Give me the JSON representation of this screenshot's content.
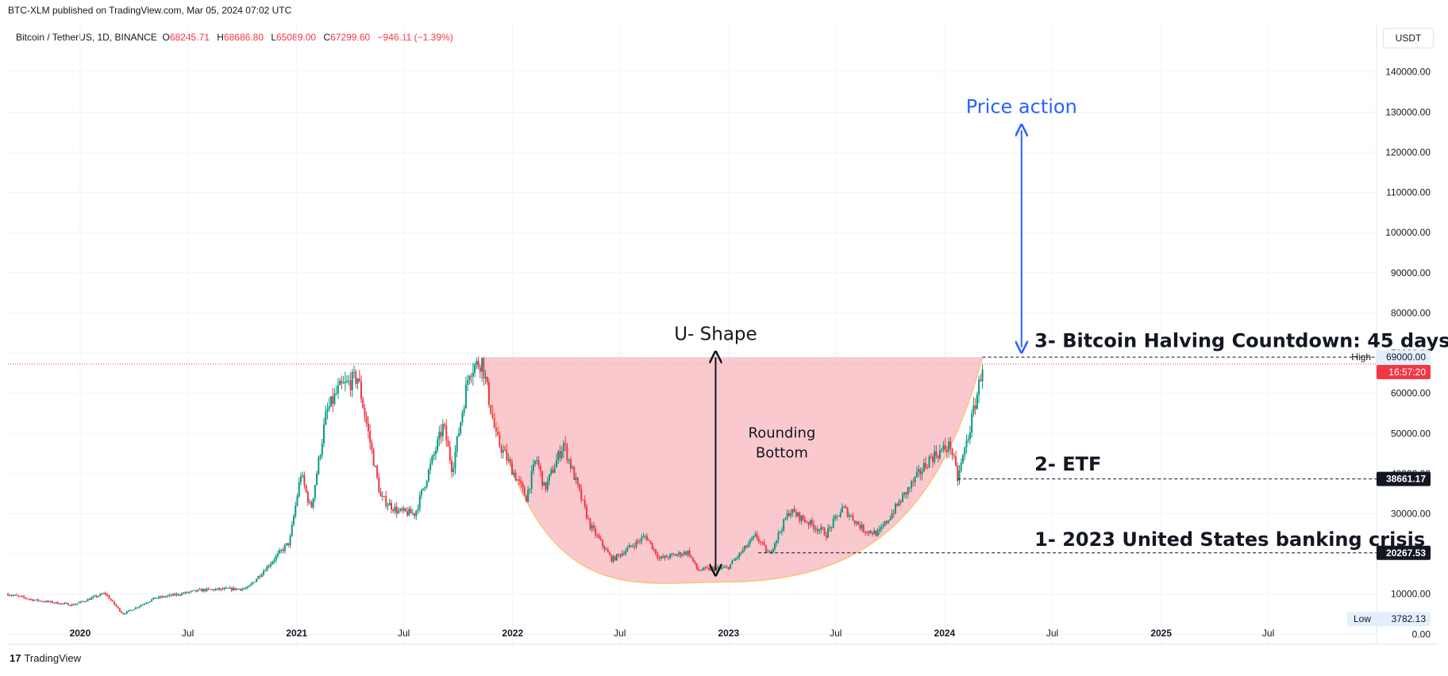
{
  "header": {
    "publisher": "BTC-XLM published on TradingView.com, Mar 05, 2024 07:02 UTC"
  },
  "symbol": {
    "name": "Bitcoin / TetherUS, 1D, BINANCE",
    "open_label": "O",
    "open": "68245.71",
    "high_label": "H",
    "high": "68686.80",
    "low_label": "L",
    "low": "65089.00",
    "close_label": "C",
    "close": "67299.60",
    "change": "−946.11 (−1.39%)"
  },
  "currency": "USDT",
  "footer": {
    "logo": "17",
    "brand": "TradingView"
  },
  "colors": {
    "up": "#089981",
    "down": "#f23645",
    "arrow_blue": "#2962ff",
    "fill_red": "#f8bfc5",
    "curve": "#f7c37a"
  },
  "chart_data": {
    "type": "candlestick",
    "y_tick_labels": [
      "140000.00",
      "130000.00",
      "120000.00",
      "110000.00",
      "100000.00",
      "90000.00",
      "80000.00",
      "70000.00",
      "60000.00",
      "50000.00",
      "40000.00",
      "30000.00",
      "20000.00",
      "10000.00",
      "0.00"
    ],
    "y_ticks": [
      140000,
      130000,
      120000,
      110000,
      100000,
      90000,
      80000,
      70000,
      60000,
      50000,
      40000,
      30000,
      20000,
      10000,
      0
    ],
    "ylim": [
      -2500,
      152000
    ],
    "xlim": [
      "2019-09-01",
      "2025-12-31"
    ],
    "x_ticks": [
      {
        "label": "2020",
        "date": "2020-01-01"
      },
      {
        "label": "Jul",
        "date": "2020-07-01"
      },
      {
        "label": "2021",
        "date": "2021-01-01"
      },
      {
        "label": "Jul",
        "date": "2021-07-01"
      },
      {
        "label": "2022",
        "date": "2022-01-01"
      },
      {
        "label": "Jul",
        "date": "2022-07-01"
      },
      {
        "label": "2023",
        "date": "2023-01-01"
      },
      {
        "label": "Jul",
        "date": "2023-07-01"
      },
      {
        "label": "2024",
        "date": "2024-01-01"
      },
      {
        "label": "Jul",
        "date": "2024-07-01"
      },
      {
        "label": "2025",
        "date": "2025-01-01"
      },
      {
        "label": "Jul",
        "date": "2025-07-01"
      }
    ],
    "price_anchors": [
      [
        "2019-09-01",
        10000
      ],
      [
        "2019-10-15",
        8500
      ],
      [
        "2019-12-20",
        7300
      ],
      [
        "2020-02-12",
        10200
      ],
      [
        "2020-03-13",
        5000
      ],
      [
        "2020-05-05",
        8900
      ],
      [
        "2020-07-25",
        11000
      ],
      [
        "2020-10-10",
        11400
      ],
      [
        "2020-12-20",
        23000
      ],
      [
        "2021-01-08",
        40000
      ],
      [
        "2021-01-25",
        31000
      ],
      [
        "2021-02-20",
        55000
      ],
      [
        "2021-03-13",
        61000
      ],
      [
        "2021-04-14",
        64000
      ],
      [
        "2021-05-23",
        34000
      ],
      [
        "2021-06-22",
        30500
      ],
      [
        "2021-07-20",
        30000
      ],
      [
        "2021-09-06",
        52000
      ],
      [
        "2021-09-21",
        41000
      ],
      [
        "2021-10-20",
        66000
      ],
      [
        "2021-11-10",
        68000
      ],
      [
        "2021-12-04",
        49000
      ],
      [
        "2022-01-24",
        34000
      ],
      [
        "2022-02-10",
        44000
      ],
      [
        "2022-02-24",
        36000
      ],
      [
        "2022-03-28",
        47500
      ],
      [
        "2022-05-12",
        27000
      ],
      [
        "2022-06-18",
        18500
      ],
      [
        "2022-08-14",
        24500
      ],
      [
        "2022-09-06",
        18800
      ],
      [
        "2022-10-25",
        20500
      ],
      [
        "2022-11-09",
        16000
      ],
      [
        "2022-12-30",
        16500
      ],
      [
        "2023-02-16",
        24500
      ],
      [
        "2023-03-10",
        19800
      ],
      [
        "2023-04-14",
        30800
      ],
      [
        "2023-06-15",
        25000
      ],
      [
        "2023-07-13",
        31500
      ],
      [
        "2023-08-17",
        26000
      ],
      [
        "2023-09-11",
        25000
      ],
      [
        "2023-10-24",
        34500
      ],
      [
        "2023-12-08",
        44000
      ],
      [
        "2024-01-11",
        47000
      ],
      [
        "2024-01-23",
        38661
      ],
      [
        "2024-02-14",
        52000
      ],
      [
        "2024-02-28",
        62000
      ],
      [
        "2024-03-05",
        67300
      ]
    ],
    "high_marker": {
      "label": "High",
      "value": "69000.00"
    },
    "low_marker": {
      "label": "Low",
      "value": "3782.13"
    },
    "current_countdown": "16:57:20",
    "level_labels": [
      {
        "text": "38661.17",
        "value": 38661.17
      },
      {
        "text": "20267.53",
        "value": 20267.53
      }
    ],
    "annotations": {
      "price_action": "Price action",
      "u_shape": "U- Shape",
      "rounding_bottom_1": "Rounding",
      "rounding_bottom_2": "Bottom",
      "halving": "3- Bitcoin Halving Countdown: 45 days",
      "etf": "2- ETF",
      "banking": "1- 2023 United States banking crisis"
    },
    "grid": true
  }
}
